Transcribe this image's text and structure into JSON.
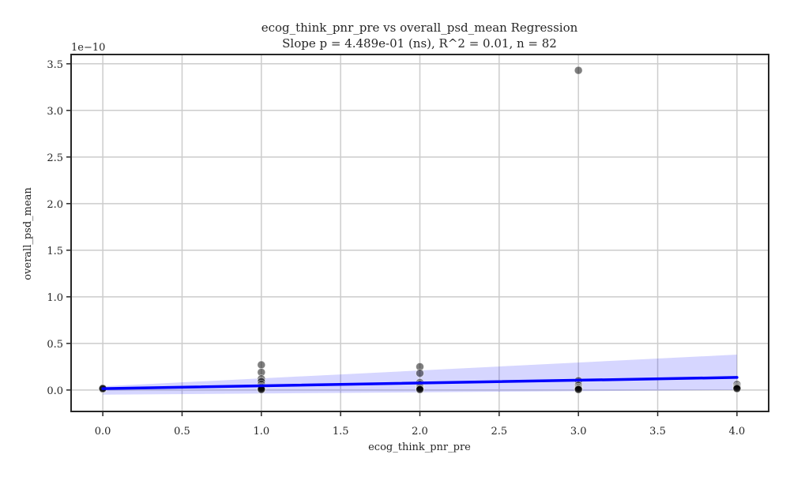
{
  "chart_data": {
    "type": "scatter",
    "title": "ecog_think_pnr_pre vs overall_psd_mean Regression",
    "subtitle": "Slope p = 4.489e-01 (ns), R^2 = 0.01, n = 82",
    "xlabel": "ecog_think_pnr_pre",
    "ylabel": "overall_psd_mean",
    "y_offset_label": "1e−10",
    "xlim": [
      -0.2,
      4.2
    ],
    "ylim": [
      -0.23,
      3.6
    ],
    "x_ticks": [
      0.0,
      0.5,
      1.0,
      1.5,
      2.0,
      2.5,
      3.0,
      3.5,
      4.0
    ],
    "x_tick_labels": [
      "0.0",
      "0.5",
      "1.0",
      "1.5",
      "2.0",
      "2.5",
      "3.0",
      "3.5",
      "4.0"
    ],
    "y_ticks": [
      0.0,
      0.5,
      1.0,
      1.5,
      2.0,
      2.5,
      3.0,
      3.5
    ],
    "y_tick_labels": [
      "0.0",
      "0.5",
      "1.0",
      "1.5",
      "2.0",
      "2.5",
      "3.0",
      "3.5"
    ],
    "grid": true,
    "points": [
      {
        "x": 0,
        "y": 0.01
      },
      {
        "x": 0,
        "y": 0.02
      },
      {
        "x": 0,
        "y": 0.015
      },
      {
        "x": 1,
        "y": 0.27
      },
      {
        "x": 1,
        "y": 0.19
      },
      {
        "x": 1,
        "y": 0.12
      },
      {
        "x": 1,
        "y": 0.09
      },
      {
        "x": 1,
        "y": 0.06
      },
      {
        "x": 1,
        "y": 0.04
      },
      {
        "x": 1,
        "y": 0.03
      },
      {
        "x": 1,
        "y": 0.02
      },
      {
        "x": 1,
        "y": 0.01
      },
      {
        "x": 1,
        "y": 0.005
      },
      {
        "x": 2,
        "y": 0.25
      },
      {
        "x": 2,
        "y": 0.18
      },
      {
        "x": 2,
        "y": 0.08
      },
      {
        "x": 2,
        "y": 0.06
      },
      {
        "x": 2,
        "y": 0.04
      },
      {
        "x": 2,
        "y": 0.03
      },
      {
        "x": 2,
        "y": 0.02
      },
      {
        "x": 2,
        "y": 0.01
      },
      {
        "x": 2,
        "y": 0.005
      },
      {
        "x": 3,
        "y": 3.43
      },
      {
        "x": 3,
        "y": 0.1
      },
      {
        "x": 3,
        "y": 0.05
      },
      {
        "x": 3,
        "y": 0.03
      },
      {
        "x": 3,
        "y": 0.02
      },
      {
        "x": 3,
        "y": 0.01
      },
      {
        "x": 3,
        "y": 0.005
      },
      {
        "x": 4,
        "y": 0.06
      },
      {
        "x": 4,
        "y": 0.04
      },
      {
        "x": 4,
        "y": 0.03
      },
      {
        "x": 4,
        "y": 0.02
      },
      {
        "x": 4,
        "y": 0.015
      }
    ],
    "regression": {
      "x": [
        0,
        4
      ],
      "y": [
        0.015,
        0.135
      ],
      "ci_lower": [
        -0.05,
        0.0
      ],
      "ci_upper": [
        0.04,
        0.38
      ]
    },
    "colors": {
      "points": "#000000",
      "regression_line": "#0000ff",
      "confidence_band": "#0000ff",
      "grid": "#cccccc",
      "axes": "#262626"
    }
  }
}
